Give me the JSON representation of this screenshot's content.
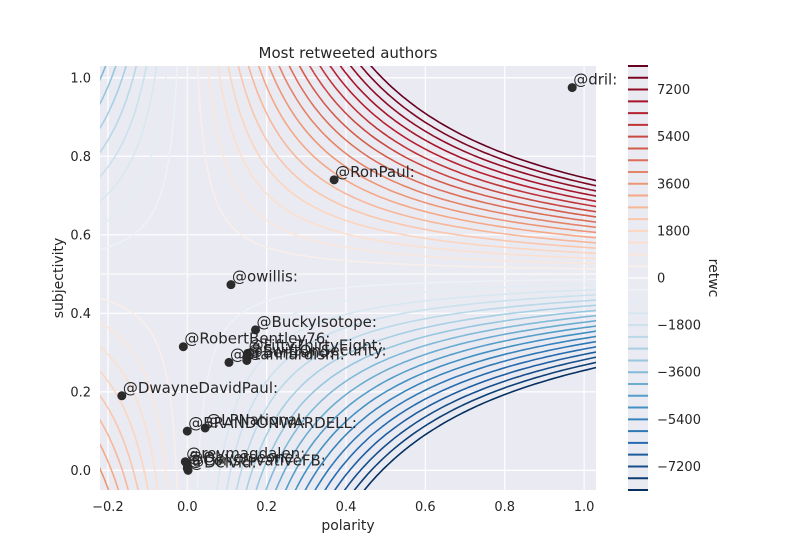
{
  "chart_data": {
    "type": "scatter",
    "title": "Most retweeted authors",
    "xlabel": "polarity",
    "ylabel": "subjectivity",
    "colorbar_label": "retwc",
    "xlim": [
      -0.22,
      1.03
    ],
    "ylim": [
      -0.05,
      1.03
    ],
    "x_ticks": [
      -0.2,
      0.0,
      0.2,
      0.4,
      0.6,
      0.8,
      1.0
    ],
    "x_tick_labels": [
      "−0.2",
      "0.0",
      "0.2",
      "0.4",
      "0.6",
      "0.8",
      "1.0"
    ],
    "y_ticks": [
      0.0,
      0.2,
      0.4,
      0.6,
      0.8,
      1.0
    ],
    "y_tick_labels": [
      "0.0",
      "0.2",
      "0.4",
      "0.6",
      "0.8",
      "1.0"
    ],
    "colorbar_ticks": [
      7200,
      5400,
      3600,
      1800,
      0,
      -1800,
      -3600,
      -5400,
      -7200
    ],
    "colorbar_tick_labels": [
      "7200",
      "5400",
      "3600",
      "1800",
      "0",
      "−1800",
      "−3600",
      "−5400",
      "−7200"
    ],
    "colorbar_range": [
      -8100,
      8100
    ],
    "contour_levels": [
      -8100,
      -7650,
      -7200,
      -6750,
      -6300,
      -5850,
      -5400,
      -4950,
      -4500,
      -4050,
      -3600,
      -3150,
      -2700,
      -2250,
      -1800,
      -1350,
      -900,
      -450,
      0,
      450,
      900,
      1350,
      1800,
      2250,
      2700,
      3150,
      3600,
      4050,
      4500,
      4950,
      5400,
      5850,
      6300,
      6750,
      7200,
      7650,
      8100
    ],
    "grid": true,
    "points": [
      {
        "label": "@dril:",
        "x": 0.97,
        "y": 0.975
      },
      {
        "label": "@RonPaul:",
        "x": 0.37,
        "y": 0.74
      },
      {
        "label": "@owillis:",
        "x": 0.11,
        "y": 0.473
      },
      {
        "label": "@BuckyIsotope:",
        "x": 0.172,
        "y": 0.358
      },
      {
        "label": "@RobertBentley76:",
        "x": -0.01,
        "y": 0.315
      },
      {
        "label": "@FiftyThirtyEight:",
        "x": 0.152,
        "y": 0.298
      },
      {
        "label": "@SwiftOnSecurity:",
        "x": 0.15,
        "y": 0.285
      },
      {
        "label": "@Stannardism:",
        "x": 0.105,
        "y": 0.275
      },
      {
        "label": "@Bertrand:",
        "x": 0.15,
        "y": 0.28
      },
      {
        "label": "@DwayneDavidPaul:",
        "x": -0.165,
        "y": 0.19
      },
      {
        "label": "@LPNational:",
        "x": 0.045,
        "y": 0.108
      },
      {
        "label": "@BRANDONWARDELL:",
        "x": 0.0,
        "y": 0.1
      },
      {
        "label": "@reymagdalen:",
        "x": -0.005,
        "y": 0.022
      },
      {
        "label": "@Obverseone:",
        "x": 0.0,
        "y": 0.013
      },
      {
        "label": "@ConservativeFB:",
        "x": 0.0,
        "y": 0.005
      },
      {
        "label": "@Deivid:",
        "x": 0.002,
        "y": 0.0
      }
    ]
  }
}
